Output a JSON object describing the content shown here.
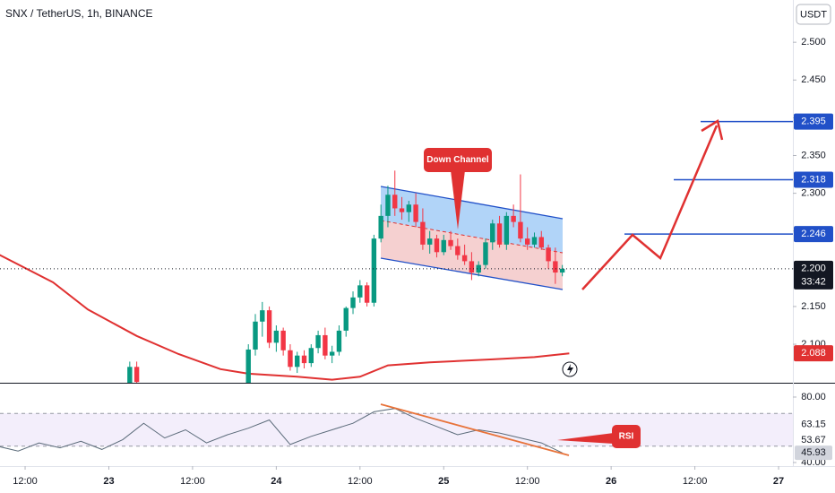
{
  "chart_data": {
    "type": "candlestick",
    "title": "SNX / TetherUS, 1h, BINANCE",
    "currency": "USDT",
    "countdown": "33:42",
    "up_color": "#089981",
    "down_color": "#f23645",
    "x": [
      27,
      28,
      44,
      45,
      46,
      47,
      48,
      49,
      50,
      51,
      52,
      53,
      54,
      55,
      56,
      57,
      58,
      59,
      60,
      61,
      62,
      63,
      64,
      65,
      66,
      67,
      68,
      69,
      70,
      71,
      72,
      73,
      74,
      75,
      76,
      77,
      78,
      79,
      80,
      81,
      82,
      83,
      84,
      85,
      86,
      87,
      88,
      89
    ],
    "open": [
      2.045,
      2.07,
      2.048,
      2.093,
      2.13,
      2.145,
      2.102,
      2.118,
      2.092,
      2.07,
      2.085,
      2.075,
      2.095,
      2.112,
      2.085,
      2.09,
      2.118,
      2.148,
      2.162,
      2.178,
      2.155,
      2.24,
      2.27,
      2.298,
      2.28,
      2.275,
      2.285,
      2.262,
      2.232,
      2.24,
      2.222,
      2.238,
      2.23,
      2.218,
      2.21,
      2.195,
      2.205,
      2.235,
      2.26,
      2.232,
      2.27,
      2.262,
      2.24,
      2.232,
      2.242,
      2.228,
      2.21,
      2.195
    ],
    "high": [
      2.077,
      2.077,
      2.1,
      2.14,
      2.156,
      2.15,
      2.125,
      2.122,
      2.1,
      2.09,
      2.092,
      2.1,
      2.118,
      2.122,
      2.098,
      2.125,
      2.15,
      2.17,
      2.185,
      2.182,
      2.245,
      2.285,
      2.31,
      2.33,
      2.295,
      2.29,
      2.3,
      2.28,
      2.25,
      2.245,
      2.245,
      2.25,
      2.24,
      2.232,
      2.222,
      2.21,
      2.24,
      2.265,
      2.27,
      2.275,
      2.285,
      2.325,
      2.255,
      2.248,
      2.25,
      2.232,
      2.228,
      2.205
    ],
    "low": [
      2.04,
      2.045,
      2.043,
      2.085,
      2.11,
      2.095,
      2.09,
      2.085,
      2.065,
      2.062,
      2.068,
      2.07,
      2.088,
      2.08,
      2.075,
      2.085,
      2.11,
      2.14,
      2.155,
      2.15,
      2.15,
      2.235,
      2.255,
      2.27,
      2.265,
      2.262,
      2.255,
      2.225,
      2.22,
      2.215,
      2.218,
      2.225,
      2.212,
      2.205,
      2.185,
      2.19,
      2.2,
      2.225,
      2.228,
      2.225,
      2.255,
      2.235,
      2.225,
      2.228,
      2.225,
      2.2,
      2.18,
      2.19
    ],
    "close": [
      2.07,
      2.05,
      2.093,
      2.13,
      2.145,
      2.102,
      2.118,
      2.092,
      2.07,
      2.085,
      2.075,
      2.095,
      2.112,
      2.085,
      2.09,
      2.118,
      2.148,
      2.162,
      2.178,
      2.155,
      2.24,
      2.27,
      2.298,
      2.28,
      2.275,
      2.285,
      2.262,
      2.232,
      2.24,
      2.222,
      2.238,
      2.23,
      2.218,
      2.21,
      2.195,
      2.205,
      2.235,
      2.26,
      2.232,
      2.27,
      2.262,
      2.24,
      2.232,
      2.242,
      2.228,
      2.21,
      2.195,
      2.2
    ],
    "ma": {
      "color": "#e03131",
      "x": [
        8,
        16,
        21,
        28,
        34,
        40,
        44,
        51,
        56,
        60,
        64,
        70,
        79,
        85,
        90
      ],
      "values": [
        2.22,
        2.182,
        2.146,
        2.111,
        2.087,
        2.067,
        2.061,
        2.057,
        2.053,
        2.057,
        2.072,
        2.076,
        2.08,
        2.083,
        2.088
      ]
    },
    "xlim": [
      8.4,
      122.05
    ],
    "xticks": [
      {
        "value": 12,
        "label": "12:00"
      },
      {
        "value": 24,
        "label": "23"
      },
      {
        "value": 36,
        "label": "12:00"
      },
      {
        "value": 48,
        "label": "24"
      },
      {
        "value": 60,
        "label": "12:00"
      },
      {
        "value": 72,
        "label": "25"
      },
      {
        "value": 84,
        "label": "12:00"
      },
      {
        "value": 96,
        "label": "26"
      },
      {
        "value": 108,
        "label": "12:00"
      },
      {
        "value": 120,
        "label": "27"
      }
    ],
    "ylim": [
      2.049,
      2.556
    ],
    "yticks": [
      {
        "value": 2.1,
        "label": "2.100"
      },
      {
        "value": 2.15,
        "label": "2.150"
      },
      {
        "value": 2.2,
        "label": "2.200"
      },
      {
        "value": 2.25,
        "label": "2.250"
      },
      {
        "value": 2.3,
        "label": "2.300"
      },
      {
        "value": 2.35,
        "label": "2.350"
      },
      {
        "value": 2.4,
        "label": "2.400"
      },
      {
        "value": 2.45,
        "label": "2.450"
      },
      {
        "value": 2.5,
        "label": "2.500"
      }
    ],
    "levels": [
      {
        "value": 2.395,
        "color": "#2150c8"
      },
      {
        "value": 2.318,
        "color": "#2150c8"
      },
      {
        "value": 2.246,
        "color": "#2150c8"
      },
      {
        "value": 2.2,
        "label": "2.200",
        "color": "#131722"
      },
      {
        "value": 2.088,
        "color": "#e03131"
      }
    ],
    "annotations": [
      "Down Channel",
      "RSI"
    ],
    "rsi": {
      "color": "#5b6b7a",
      "ylim": [
        37.8,
        88.2
      ],
      "yticks": [
        {
          "value": 80,
          "label": "80.00"
        },
        {
          "value": 40,
          "label": "40.00"
        }
      ],
      "dashed_levels": [
        70,
        50
      ],
      "x": [
        8,
        11,
        14,
        17,
        20,
        23,
        26,
        29,
        32,
        35,
        38,
        41,
        44,
        47,
        50,
        53,
        56,
        59,
        62,
        65,
        68,
        71,
        74,
        77,
        80,
        83,
        86,
        89
      ],
      "values": [
        50,
        47,
        52,
        49,
        53,
        48,
        54,
        64,
        55,
        60,
        52,
        57,
        61,
        66,
        51,
        56,
        60,
        64,
        71,
        73,
        67,
        62,
        57,
        60,
        58,
        55,
        52,
        45.93
      ],
      "labels": [
        63.15,
        53.67,
        45.93
      ]
    }
  }
}
